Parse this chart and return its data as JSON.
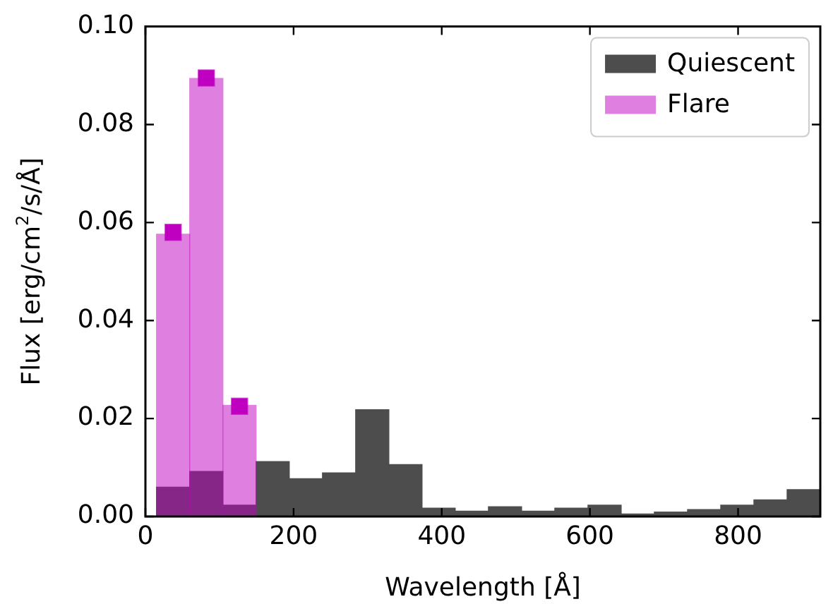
{
  "chart_data": {
    "type": "histogram",
    "xlabel": "Wavelength [Å]",
    "ylabel": "Flux [erg/cm$^{2}$/s/Å]",
    "bins": [
      15,
      59.8,
      104.6,
      149.4,
      194.2,
      239,
      283.8,
      328.6,
      373.4,
      418.2,
      463,
      507.8,
      552.6,
      597.4,
      642.2,
      687,
      731.8,
      776.6,
      821.4,
      866.2,
      911
    ],
    "series": [
      {
        "name": "Quiescent",
        "color": "#4d4d4d",
        "values": [
          0.006,
          0.0092,
          0.0023,
          0.0112,
          0.0077,
          0.0089,
          0.0218,
          0.0106,
          0.0017,
          0.0011,
          0.002,
          0.0011,
          0.0017,
          0.0023,
          0.0005,
          0.0009,
          0.0014,
          0.0023,
          0.0034,
          0.0055
        ]
      },
      {
        "name": "Flare",
        "color": "#c000c0",
        "bins": [
          15,
          59.8,
          104.6,
          149.4
        ],
        "values": [
          0.0576,
          0.0894,
          0.0227
        ]
      },
      {
        "type": "scatter",
        "color": "#c000c0",
        "x": [
          37.4,
          82.2,
          127
        ],
        "values": [
          0.058,
          0.0895,
          0.0225
        ]
      }
    ],
    "xlim": [
      0,
      911
    ],
    "xticks": [
      0,
      200,
      400,
      600,
      800
    ],
    "ylim": [
      0,
      0.1
    ],
    "yticks": [
      {
        "value": 0,
        "label": "0.00"
      },
      {
        "value": 0.02,
        "label": "0.02"
      },
      {
        "value": 0.04,
        "label": "0.04"
      },
      {
        "value": 0.06,
        "label": "0.06"
      },
      {
        "value": 0.08,
        "label": "0.08"
      },
      {
        "value": 0.1,
        "label": "0.10"
      }
    ],
    "legend": "top right",
    "marker": "square",
    "grid": false
  }
}
